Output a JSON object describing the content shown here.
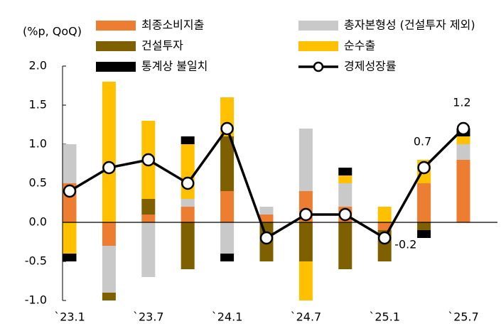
{
  "chart_data": {
    "type": "bar",
    "stacked": true,
    "y_label": "(%p, QoQ)",
    "categories": [
      "`23.1",
      null,
      "`23.7",
      null,
      "`24.1",
      null,
      "`24.7",
      null,
      "`25.1",
      null,
      "`25.7"
    ],
    "ylim": [
      -1.0,
      2.0
    ],
    "yticks": [
      {
        "value": 2.0,
        "label": "2.0"
      },
      {
        "value": 1.5,
        "label": "1.5"
      },
      {
        "value": 1.0,
        "label": "1.0"
      },
      {
        "value": 0.5,
        "label": "0.5"
      },
      {
        "value": 0.0,
        "label": "0.0"
      },
      {
        "value": -0.5,
        "label": "-0.5"
      },
      {
        "value": -1.0,
        "label": "-1.0"
      }
    ],
    "series": [
      {
        "name": "최종소비지출",
        "color": "#ed7d31",
        "values": [
          0.5,
          -0.3,
          0.1,
          0.2,
          0.4,
          0.1,
          0.4,
          0.2,
          -0.1,
          0.5,
          0.8
        ]
      },
      {
        "name": "총자본형성 (건설투자 제외)",
        "color": "#c9c9c9",
        "values": [
          0.5,
          -0.6,
          -0.7,
          0.1,
          -0.4,
          0.1,
          0.8,
          0.3,
          0,
          0,
          0.2
        ]
      },
      {
        "name": "건설투자",
        "color": "#7f6000",
        "values": [
          0,
          -0.1,
          0.2,
          -0.6,
          0.7,
          -0.5,
          -0.5,
          -0.6,
          -0.4,
          -0.1,
          0
        ]
      },
      {
        "name": "순수출",
        "color": "#ffc000",
        "values": [
          -0.4,
          1.8,
          1.0,
          0.7,
          0.5,
          0,
          -0.5,
          0.1,
          0.2,
          0.3,
          0.1
        ]
      },
      {
        "name": "통계상 불일치",
        "color": "#000000",
        "values": [
          -0.1,
          0,
          0,
          0.1,
          -0.1,
          0,
          0,
          0.1,
          0,
          -0.1,
          0.1
        ]
      },
      {
        "name": "경제성장률",
        "type": "line",
        "color": "#000000",
        "values": [
          0.4,
          0.7,
          0.8,
          0.5,
          1.2,
          -0.2,
          0.1,
          0.1,
          -0.2,
          0.7,
          1.2
        ],
        "labeled_points": [
          8,
          9,
          10
        ]
      }
    ]
  }
}
